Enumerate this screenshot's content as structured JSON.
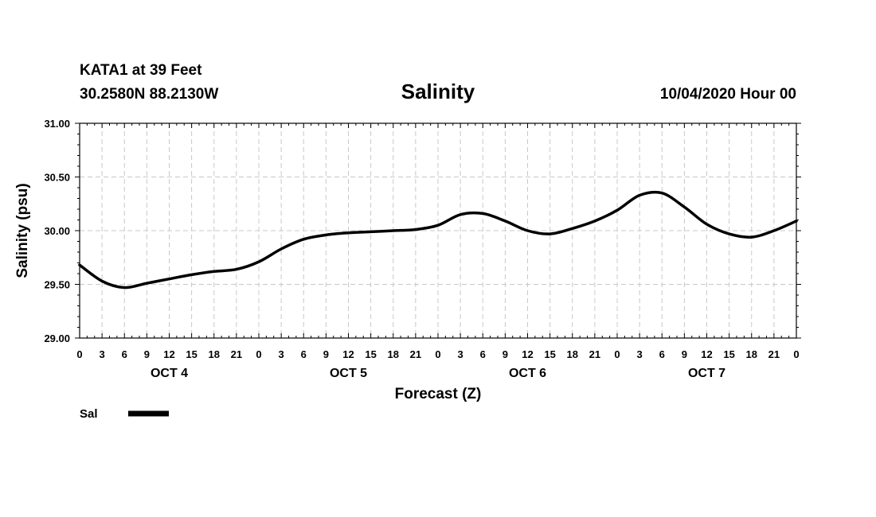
{
  "header": {
    "station": "KATA1 at 39 Feet",
    "location": "30.2580N 88.2130W",
    "title": "Salinity",
    "datetime": "10/04/2020 Hour 00"
  },
  "chart_data": {
    "type": "line",
    "title": "Salinity",
    "xlabel": "Forecast (Z)",
    "ylabel": "Salinity (psu)",
    "ylim": [
      29.0,
      31.0
    ],
    "xlim": [
      0,
      96
    ],
    "grid": true,
    "y_ticks": [
      "29.00",
      "29.50",
      "30.00",
      "30.50",
      "31.00"
    ],
    "x_tick_labels": [
      "0",
      "3",
      "6",
      "9",
      "12",
      "15",
      "18",
      "21",
      "0",
      "3",
      "6",
      "9",
      "12",
      "15",
      "18",
      "21",
      "0",
      "3",
      "6",
      "9",
      "12",
      "15",
      "18",
      "21",
      "0",
      "3",
      "6",
      "9",
      "12",
      "15",
      "18",
      "21",
      "0"
    ],
    "day_labels": [
      "OCT 4",
      "OCT 5",
      "OCT 6",
      "OCT 7"
    ],
    "legend": {
      "position": "bottom-left",
      "entries": [
        {
          "name": "Sal",
          "color": "#000000"
        }
      ]
    },
    "series": [
      {
        "name": "Sal",
        "color": "#000000",
        "x": [
          0,
          3,
          6,
          9,
          12,
          15,
          18,
          21,
          24,
          27,
          30,
          33,
          36,
          39,
          42,
          45,
          48,
          51,
          54,
          57,
          60,
          63,
          66,
          69,
          72,
          75,
          78,
          81,
          84,
          87,
          90,
          93,
          96
        ],
        "values": [
          29.68,
          29.53,
          29.47,
          29.51,
          29.55,
          29.59,
          29.62,
          29.64,
          29.71,
          29.83,
          29.92,
          29.96,
          29.98,
          29.99,
          30.0,
          30.01,
          30.05,
          30.15,
          30.16,
          30.09,
          30.0,
          29.97,
          30.02,
          30.09,
          30.19,
          30.33,
          30.35,
          30.22,
          30.06,
          29.97,
          29.94,
          30.0,
          30.09
        ]
      }
    ]
  }
}
